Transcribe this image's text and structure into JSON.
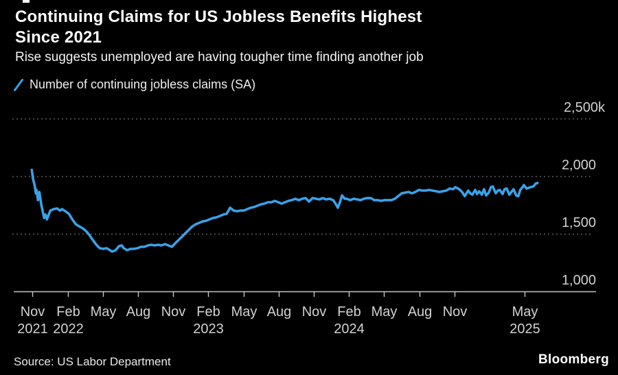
{
  "page": {
    "background": "#000000",
    "accent_blue": "#3aa1e8"
  },
  "header": {
    "title_lines": [
      "Continuing Claims for US Jobless Benefits Highest",
      "Since 2021"
    ],
    "subtitle": "Rise suggests unemployed are having tougher time finding another job"
  },
  "legend": {
    "marker": "blue-slash",
    "marker_color": "#3aa1e8",
    "label": "Number of continuing jobless claims (SA)"
  },
  "footer": {
    "source": "Source: US Labor Department",
    "brand": "Bloomberg"
  },
  "chart_data": {
    "type": "line",
    "title": "Continuing Claims for US Jobless Benefits Highest Since 2021",
    "series_name": "Number of continuing jobless claims (SA)",
    "unit": "thousands of claims, seasonally adjusted",
    "line_color": "#3aa1e8",
    "grid": "horizontal-dashed",
    "legend_position": "top-left",
    "y_axis_side": "right",
    "x_range": [
      2021.69,
      2025.81
    ],
    "y_range": [
      1000,
      2500
    ],
    "y_ticks": [
      {
        "label": "2,500k",
        "value": 2500,
        "grid": true
      },
      {
        "label": "2,000",
        "value": 2000,
        "grid": true
      },
      {
        "label": "1,500",
        "value": 1500,
        "grid": true
      },
      {
        "label": "1,000",
        "value": 1000,
        "grid": false
      }
    ],
    "x_ticks": [
      {
        "month": "Nov",
        "year": "2021",
        "date": 2021.833
      },
      {
        "month": "Feb",
        "year": "2022",
        "date": 2022.083
      },
      {
        "month": "May",
        "date": 2022.333
      },
      {
        "month": "Aug",
        "date": 2022.583
      },
      {
        "month": "Nov",
        "date": 2022.833
      },
      {
        "month": "Feb",
        "year": "2023",
        "date": 2023.083
      },
      {
        "month": "May",
        "date": 2023.333
      },
      {
        "month": "Aug",
        "date": 2023.583
      },
      {
        "month": "Nov",
        "date": 2023.833
      },
      {
        "month": "Feb",
        "year": "2024",
        "date": 2024.083
      },
      {
        "month": "May",
        "date": 2024.333
      },
      {
        "month": "Aug",
        "date": 2024.583
      },
      {
        "month": "Nov",
        "date": 2024.833
      },
      {
        "month": "May",
        "year": "2025",
        "date": 2025.333
      }
    ],
    "points": [
      [
        2021.828,
        2055
      ],
      [
        2021.838,
        1970
      ],
      [
        2021.848,
        1923
      ],
      [
        2021.857,
        1851
      ],
      [
        2021.862,
        1881
      ],
      [
        2021.872,
        1792
      ],
      [
        2021.882,
        1863
      ],
      [
        2021.897,
        1744
      ],
      [
        2021.906,
        1696
      ],
      [
        2021.916,
        1637
      ],
      [
        2021.926,
        1667
      ],
      [
        2021.936,
        1625
      ],
      [
        2021.96,
        1702
      ],
      [
        2021.984,
        1714
      ],
      [
        2022.009,
        1720
      ],
      [
        2022.028,
        1702
      ],
      [
        2022.043,
        1714
      ],
      [
        2022.067,
        1696
      ],
      [
        2022.092,
        1673
      ],
      [
        2022.116,
        1625
      ],
      [
        2022.141,
        1583
      ],
      [
        2022.165,
        1565
      ],
      [
        2022.189,
        1548
      ],
      [
        2022.214,
        1524
      ],
      [
        2022.238,
        1488
      ],
      [
        2022.262,
        1446
      ],
      [
        2022.287,
        1405
      ],
      [
        2022.311,
        1375
      ],
      [
        2022.336,
        1369
      ],
      [
        2022.36,
        1375
      ],
      [
        2022.384,
        1357
      ],
      [
        2022.399,
        1345
      ],
      [
        2022.424,
        1357
      ],
      [
        2022.448,
        1393
      ],
      [
        2022.467,
        1399
      ],
      [
        2022.482,
        1375
      ],
      [
        2022.506,
        1357
      ],
      [
        2022.531,
        1369
      ],
      [
        2022.555,
        1369
      ],
      [
        2022.58,
        1375
      ],
      [
        2022.604,
        1387
      ],
      [
        2022.628,
        1387
      ],
      [
        2022.653,
        1399
      ],
      [
        2022.677,
        1405
      ],
      [
        2022.702,
        1399
      ],
      [
        2022.726,
        1405
      ],
      [
        2022.75,
        1399
      ],
      [
        2022.775,
        1411
      ],
      [
        2022.799,
        1399
      ],
      [
        2022.824,
        1387
      ],
      [
        2022.848,
        1417
      ],
      [
        2022.872,
        1446
      ],
      [
        2022.897,
        1476
      ],
      [
        2022.921,
        1506
      ],
      [
        2022.946,
        1536
      ],
      [
        2022.97,
        1565
      ],
      [
        2022.994,
        1583
      ],
      [
        2023.019,
        1595
      ],
      [
        2023.043,
        1607
      ],
      [
        2023.068,
        1613
      ],
      [
        2023.092,
        1625
      ],
      [
        2023.116,
        1637
      ],
      [
        2023.141,
        1643
      ],
      [
        2023.165,
        1655
      ],
      [
        2023.19,
        1667
      ],
      [
        2023.214,
        1673
      ],
      [
        2023.238,
        1726
      ],
      [
        2023.263,
        1702
      ],
      [
        2023.287,
        1696
      ],
      [
        2023.311,
        1702
      ],
      [
        2023.336,
        1702
      ],
      [
        2023.36,
        1714
      ],
      [
        2023.385,
        1726
      ],
      [
        2023.409,
        1732
      ],
      [
        2023.433,
        1744
      ],
      [
        2023.458,
        1756
      ],
      [
        2023.482,
        1762
      ],
      [
        2023.507,
        1774
      ],
      [
        2023.531,
        1774
      ],
      [
        2023.555,
        1786
      ],
      [
        2023.58,
        1774
      ],
      [
        2023.604,
        1762
      ],
      [
        2023.629,
        1774
      ],
      [
        2023.653,
        1786
      ],
      [
        2023.677,
        1792
      ],
      [
        2023.702,
        1804
      ],
      [
        2023.726,
        1792
      ],
      [
        2023.751,
        1804
      ],
      [
        2023.775,
        1810
      ],
      [
        2023.799,
        1780
      ],
      [
        2023.824,
        1810
      ],
      [
        2023.848,
        1804
      ],
      [
        2023.873,
        1798
      ],
      [
        2023.897,
        1810
      ],
      [
        2023.921,
        1798
      ],
      [
        2023.946,
        1804
      ],
      [
        2023.97,
        1792
      ],
      [
        2023.985,
        1768
      ],
      [
        2024.004,
        1726
      ],
      [
        2024.019,
        1774
      ],
      [
        2024.033,
        1833
      ],
      [
        2024.053,
        1804
      ],
      [
        2024.067,
        1804
      ],
      [
        2024.092,
        1792
      ],
      [
        2024.116,
        1804
      ],
      [
        2024.141,
        1798
      ],
      [
        2024.165,
        1792
      ],
      [
        2024.189,
        1804
      ],
      [
        2024.214,
        1810
      ],
      [
        2024.238,
        1810
      ],
      [
        2024.262,
        1792
      ],
      [
        2024.287,
        1792
      ],
      [
        2024.311,
        1786
      ],
      [
        2024.336,
        1792
      ],
      [
        2024.36,
        1792
      ],
      [
        2024.384,
        1792
      ],
      [
        2024.409,
        1804
      ],
      [
        2024.433,
        1827
      ],
      [
        2024.458,
        1851
      ],
      [
        2024.482,
        1857
      ],
      [
        2024.506,
        1863
      ],
      [
        2024.531,
        1851
      ],
      [
        2024.555,
        1863
      ],
      [
        2024.58,
        1881
      ],
      [
        2024.604,
        1875
      ],
      [
        2024.628,
        1875
      ],
      [
        2024.653,
        1881
      ],
      [
        2024.677,
        1875
      ],
      [
        2024.702,
        1869
      ],
      [
        2024.726,
        1863
      ],
      [
        2024.75,
        1869
      ],
      [
        2024.775,
        1875
      ],
      [
        2024.799,
        1893
      ],
      [
        2024.824,
        1887
      ],
      [
        2024.838,
        1905
      ],
      [
        2024.858,
        1893
      ],
      [
        2024.872,
        1881
      ],
      [
        2024.887,
        1863
      ],
      [
        2024.906,
        1827
      ],
      [
        2024.931,
        1875
      ],
      [
        2024.946,
        1851
      ],
      [
        2024.96,
        1839
      ],
      [
        2024.98,
        1881
      ],
      [
        2024.994,
        1845
      ],
      [
        2025.009,
        1869
      ],
      [
        2025.028,
        1839
      ],
      [
        2025.043,
        1887
      ],
      [
        2025.058,
        1833
      ],
      [
        2025.077,
        1857
      ],
      [
        2025.092,
        1905
      ],
      [
        2025.106,
        1911
      ],
      [
        2025.126,
        1851
      ],
      [
        2025.141,
        1875
      ],
      [
        2025.155,
        1881
      ],
      [
        2025.175,
        1845
      ],
      [
        2025.189,
        1887
      ],
      [
        2025.204,
        1893
      ],
      [
        2025.223,
        1839
      ],
      [
        2025.238,
        1863
      ],
      [
        2025.253,
        1887
      ],
      [
        2025.272,
        1833
      ],
      [
        2025.287,
        1827
      ],
      [
        2025.301,
        1881
      ],
      [
        2025.321,
        1911
      ],
      [
        2025.326,
        1923
      ],
      [
        2025.345,
        1893
      ],
      [
        2025.36,
        1899
      ],
      [
        2025.374,
        1905
      ],
      [
        2025.394,
        1911
      ],
      [
        2025.409,
        1935
      ],
      [
        2025.423,
        1941
      ]
    ]
  }
}
